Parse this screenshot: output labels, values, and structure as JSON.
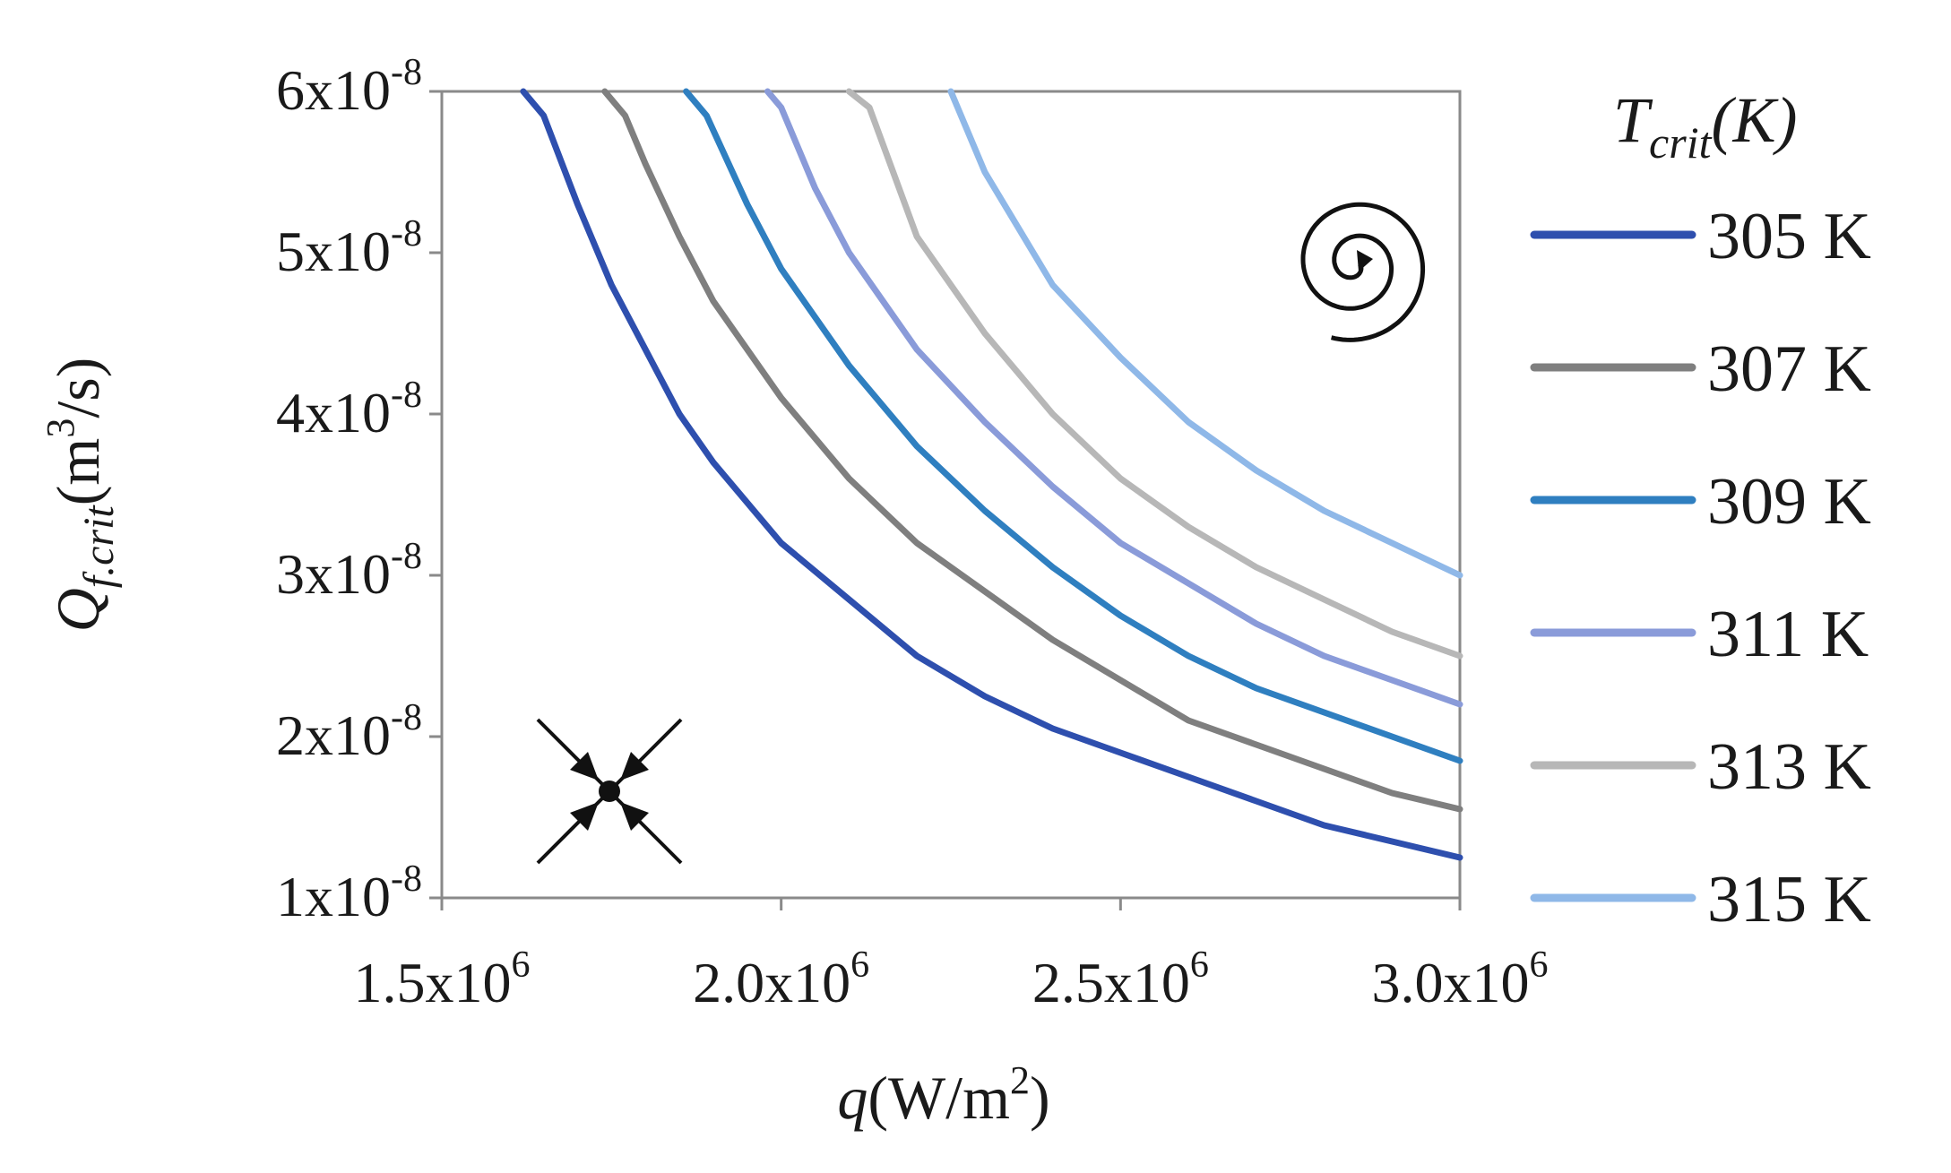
{
  "chart_data": {
    "type": "line",
    "xlabel": {
      "main": "q",
      "unit": "(W/m",
      "sup": "2",
      "close": ")"
    },
    "ylabel": {
      "main": "Q",
      "sub": "f.crit",
      "unit": "(m",
      "sup": "3",
      "close": "/s)"
    },
    "xlim": [
      1500000,
      3000000
    ],
    "ylim": [
      1e-08,
      6e-08
    ],
    "grid": false,
    "x_ticks": [
      {
        "value": 1500000,
        "base": "1.5x10",
        "exp": "6"
      },
      {
        "value": 2000000,
        "base": "2.0x10",
        "exp": "6"
      },
      {
        "value": 2500000,
        "base": "2.5x10",
        "exp": "6"
      },
      {
        "value": 3000000,
        "base": "3.0x10",
        "exp": "6"
      }
    ],
    "y_ticks": [
      {
        "value": 1e-08,
        "base": "1x10",
        "exp": "-8"
      },
      {
        "value": 2e-08,
        "base": "2x10",
        "exp": "-8"
      },
      {
        "value": 3e-08,
        "base": "3x10",
        "exp": "-8"
      },
      {
        "value": 4e-08,
        "base": "4x10",
        "exp": "-8"
      },
      {
        "value": 5e-08,
        "base": "5x10",
        "exp": "-8"
      },
      {
        "value": 6e-08,
        "base": "6x10",
        "exp": "-8"
      }
    ],
    "legend": {
      "title_main": "T",
      "title_sub": "crit",
      "title_unit": "(K)",
      "placement": "right"
    },
    "series": [
      {
        "name": "305 K",
        "color": "#2e4fae",
        "x": [
          1620000,
          1650000,
          1700000,
          1750000,
          1800000,
          1850000,
          1900000,
          2000000,
          2100000,
          2200000,
          2300000,
          2400000,
          2500000,
          2600000,
          2700000,
          2800000,
          2900000,
          3000000
        ],
        "y": [
          6e-08,
          5.85e-08,
          5.3e-08,
          4.8e-08,
          4.4e-08,
          4e-08,
          3.7e-08,
          3.2e-08,
          2.85e-08,
          2.5e-08,
          2.25e-08,
          2.05e-08,
          1.9e-08,
          1.75e-08,
          1.6e-08,
          1.45e-08,
          1.35e-08,
          1.25e-08
        ]
      },
      {
        "name": "307 K",
        "color": "#7f7f7f",
        "x": [
          1740000,
          1770000,
          1800000,
          1850000,
          1900000,
          2000000,
          2100000,
          2200000,
          2300000,
          2400000,
          2500000,
          2600000,
          2700000,
          2800000,
          2900000,
          3000000
        ],
        "y": [
          6e-08,
          5.85e-08,
          5.55e-08,
          5.1e-08,
          4.7e-08,
          4.1e-08,
          3.6e-08,
          3.2e-08,
          2.9e-08,
          2.6e-08,
          2.35e-08,
          2.1e-08,
          1.95e-08,
          1.8e-08,
          1.65e-08,
          1.55e-08
        ]
      },
      {
        "name": "309 K",
        "color": "#2f7fc0",
        "x": [
          1860000,
          1890000,
          1950000,
          2000000,
          2100000,
          2200000,
          2300000,
          2400000,
          2500000,
          2600000,
          2700000,
          2800000,
          2900000,
          3000000
        ],
        "y": [
          6e-08,
          5.85e-08,
          5.3e-08,
          4.9e-08,
          4.3e-08,
          3.8e-08,
          3.4e-08,
          3.05e-08,
          2.75e-08,
          2.5e-08,
          2.3e-08,
          2.15e-08,
          2e-08,
          1.85e-08
        ]
      },
      {
        "name": "311 K",
        "color": "#8a9bd9",
        "x": [
          1980000,
          2000000,
          2050000,
          2100000,
          2200000,
          2300000,
          2400000,
          2500000,
          2600000,
          2700000,
          2800000,
          2900000,
          3000000
        ],
        "y": [
          6e-08,
          5.9e-08,
          5.4e-08,
          5e-08,
          4.4e-08,
          3.95e-08,
          3.55e-08,
          3.2e-08,
          2.95e-08,
          2.7e-08,
          2.5e-08,
          2.35e-08,
          2.2e-08
        ]
      },
      {
        "name": "313 K",
        "color": "#b7b7b7",
        "x": [
          2100000,
          2130000,
          2200000,
          2300000,
          2400000,
          2500000,
          2600000,
          2700000,
          2800000,
          2900000,
          3000000
        ],
        "y": [
          6e-08,
          5.9e-08,
          5.1e-08,
          4.5e-08,
          4e-08,
          3.6e-08,
          3.3e-08,
          3.05e-08,
          2.85e-08,
          2.65e-08,
          2.5e-08
        ]
      },
      {
        "name": "315 K",
        "color": "#8fb8e8",
        "x": [
          2250000,
          2300000,
          2400000,
          2500000,
          2600000,
          2700000,
          2800000,
          2900000,
          3000000
        ],
        "y": [
          6e-08,
          5.5e-08,
          4.8e-08,
          4.35e-08,
          3.95e-08,
          3.65e-08,
          3.4e-08,
          3.2e-08,
          3e-08
        ]
      }
    ],
    "annotations": [
      {
        "kind": "spiral-symbol",
        "location": "top-right"
      },
      {
        "kind": "stable-node-symbol",
        "location": "bottom-left"
      }
    ]
  }
}
